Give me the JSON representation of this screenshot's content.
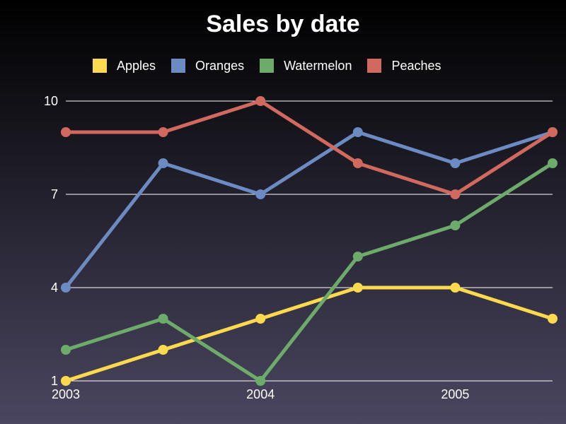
{
  "chart_data": {
    "type": "line",
    "title": "Sales by date",
    "xlabel": "",
    "ylabel": "",
    "x": [
      2003,
      2003.5,
      2004,
      2004.5,
      2005,
      2005.5
    ],
    "x_ticks": [
      "2003",
      "2004",
      "2005"
    ],
    "xlim": [
      2003,
      2005.5
    ],
    "y_ticks": [
      "1",
      "4",
      "7",
      "10"
    ],
    "ylim": [
      1,
      10
    ],
    "grid": true,
    "legend": "top",
    "series": [
      {
        "name": "Apples",
        "color": "#fcd94e",
        "values": [
          1,
          2,
          3,
          4,
          4,
          3
        ]
      },
      {
        "name": "Oranges",
        "color": "#6c8bc2",
        "values": [
          4,
          8,
          7,
          9,
          8,
          9
        ]
      },
      {
        "name": "Watermelon",
        "color": "#6dab6b",
        "values": [
          2,
          3,
          1,
          5,
          6,
          8
        ]
      },
      {
        "name": "Peaches",
        "color": "#d2695f",
        "values": [
          9,
          9,
          10,
          8,
          7,
          9
        ]
      }
    ]
  }
}
